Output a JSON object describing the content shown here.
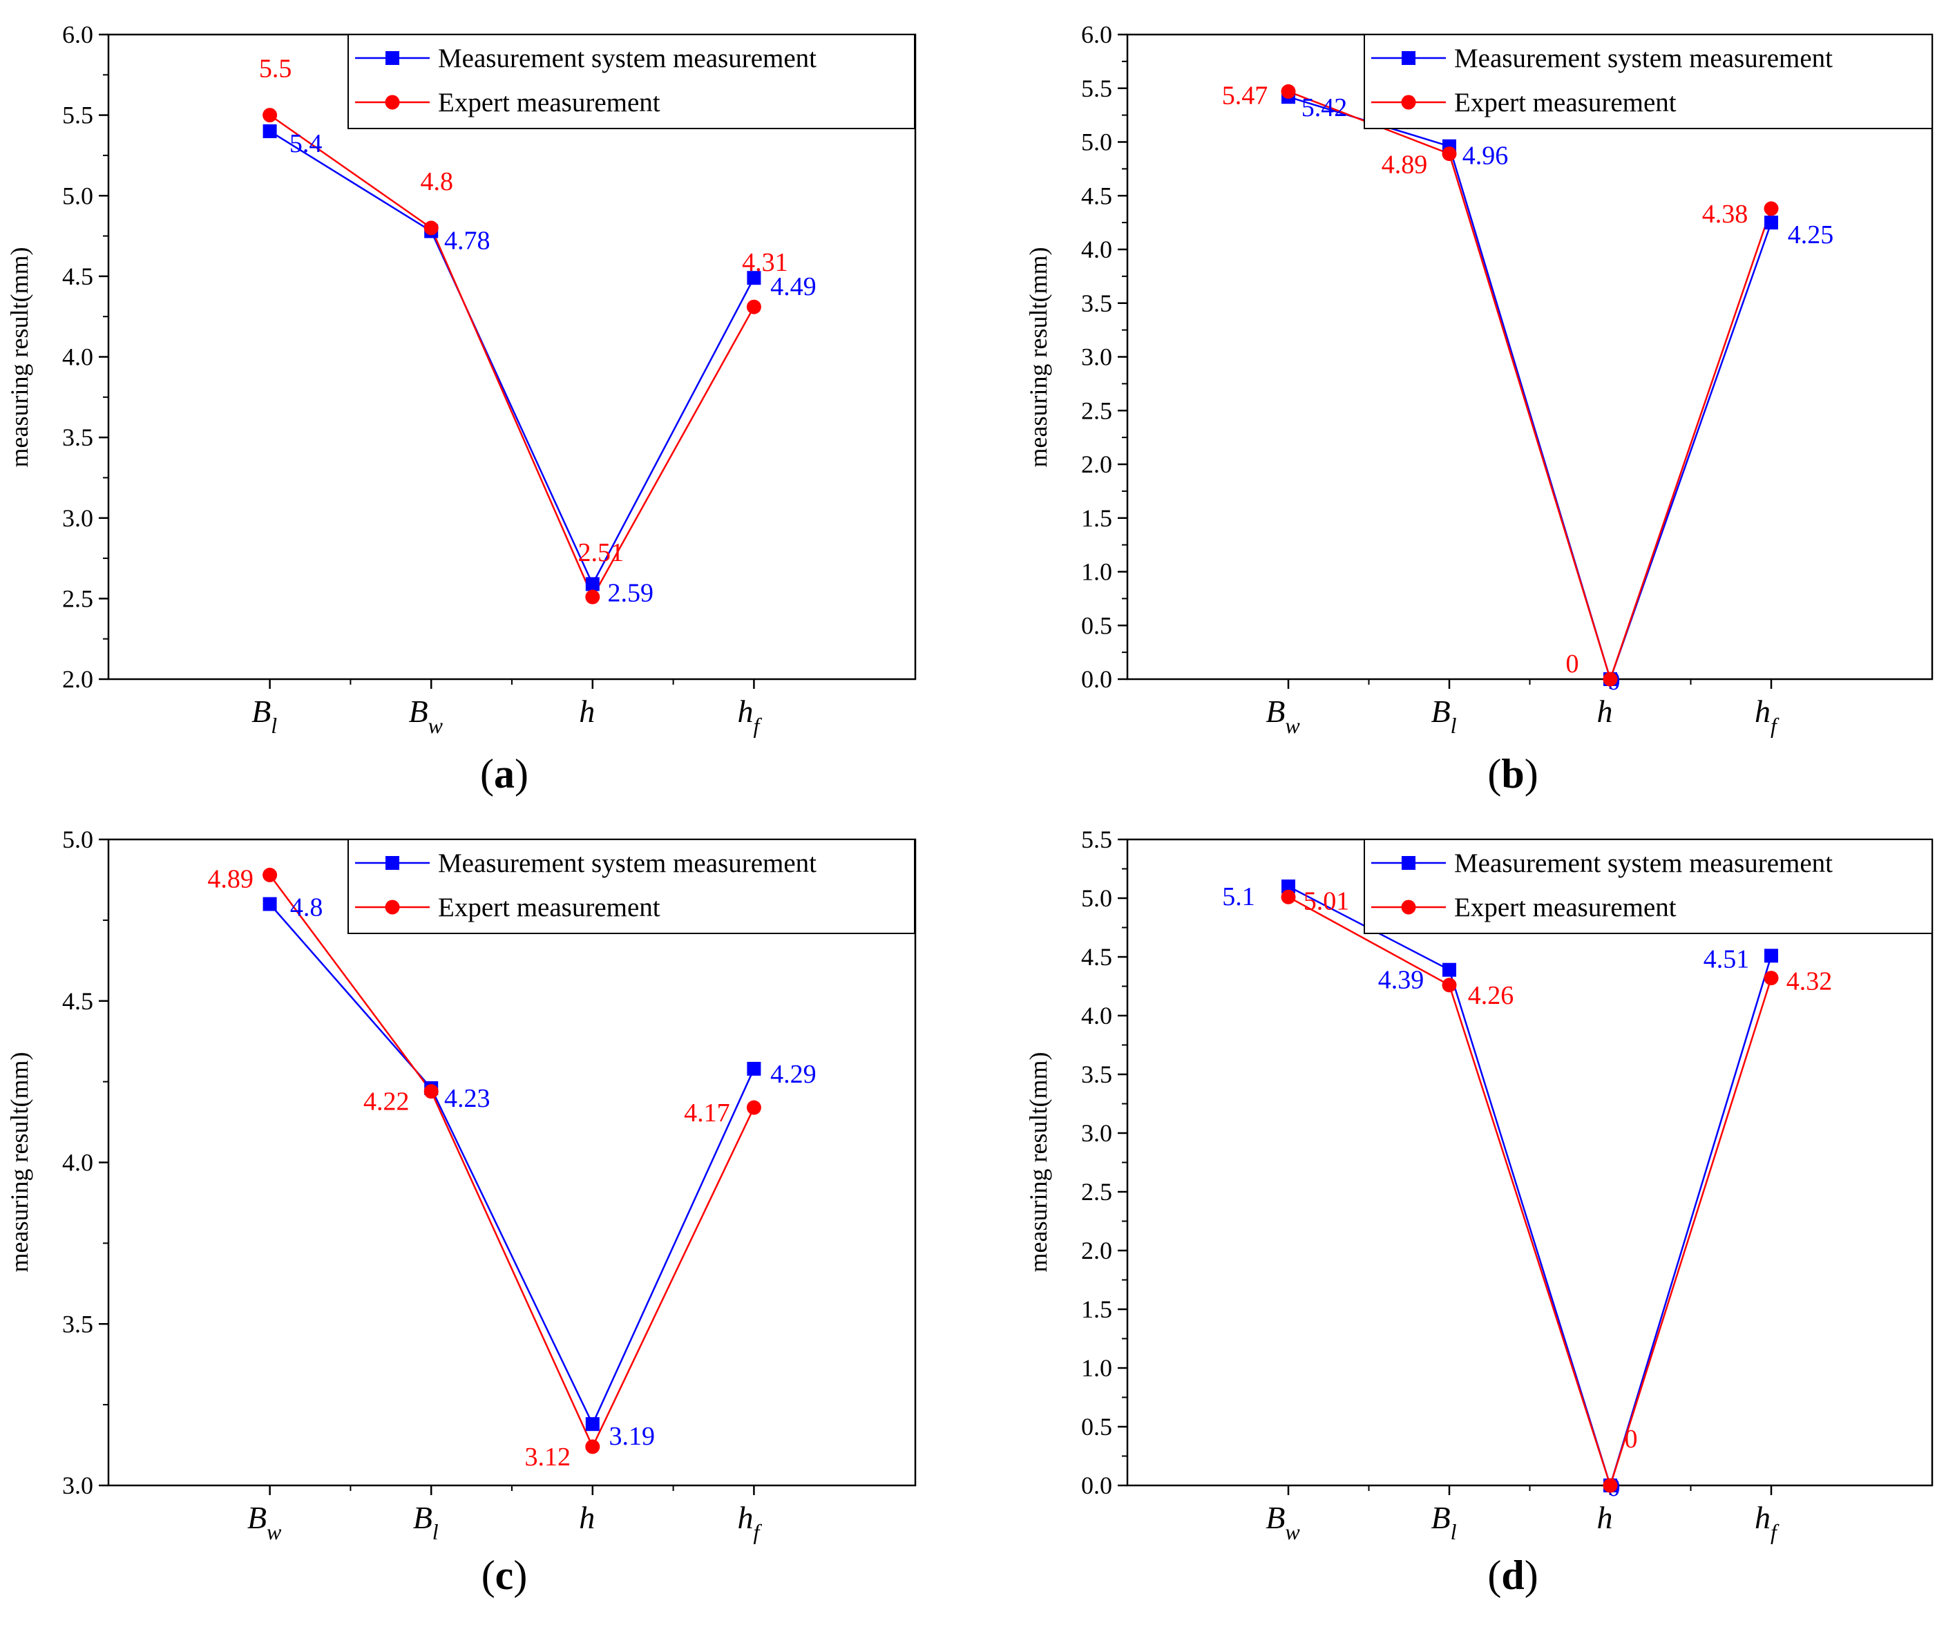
{
  "colors": {
    "system": "#0000ff",
    "expert": "#ff0000",
    "axis": "#000000",
    "background": "#ffffff"
  },
  "chart_data": [
    {
      "panel": "(a)",
      "panel_letter": "a",
      "type": "line",
      "ylabel": "measuring result(mm)",
      "ylim": [
        2.0,
        6.0
      ],
      "yticks": [
        "2.0",
        "2.5",
        "3.0",
        "3.5",
        "4.0",
        "4.5",
        "5.0",
        "5.5",
        "6.0"
      ],
      "categories": [
        {
          "main": "B",
          "sub": "l"
        },
        {
          "main": "B",
          "sub": "w"
        },
        {
          "main": "h",
          "sub": ""
        },
        {
          "main": "h",
          "sub": "f"
        }
      ],
      "legend": {
        "position": "top-right",
        "entries": [
          "Measurement system measurement",
          "Expert measurement"
        ]
      },
      "series": [
        {
          "name": "Measurement system measurement",
          "marker": "square",
          "color": "#0000ff",
          "values": [
            5.4,
            4.78,
            2.59,
            4.49
          ],
          "labels": [
            "5.4",
            "4.78",
            "2.59",
            "4.49"
          ]
        },
        {
          "name": "Expert measurement",
          "marker": "circle",
          "color": "#ff0000",
          "values": [
            5.5,
            4.8,
            2.51,
            4.31
          ],
          "labels": [
            "5.5",
            "4.8",
            "2.51",
            "4.31"
          ]
        }
      ]
    },
    {
      "panel": "(b)",
      "panel_letter": "b",
      "type": "line",
      "ylabel": "measuring result(mm)",
      "ylim": [
        0.0,
        6.0
      ],
      "yticks": [
        "0.0",
        "0.5",
        "1.0",
        "1.5",
        "2.0",
        "2.5",
        "3.0",
        "3.5",
        "4.0",
        "4.5",
        "5.0",
        "5.5",
        "6.0"
      ],
      "categories": [
        {
          "main": "B",
          "sub": "w"
        },
        {
          "main": "B",
          "sub": "l"
        },
        {
          "main": "h",
          "sub": ""
        },
        {
          "main": "h",
          "sub": "f"
        }
      ],
      "legend": {
        "position": "top-right",
        "entries": [
          "Measurement system measurement",
          "Expert measurement"
        ]
      },
      "series": [
        {
          "name": "Measurement system measurement",
          "marker": "square",
          "color": "#0000ff",
          "values": [
            5.42,
            4.96,
            0,
            4.25
          ],
          "labels": [
            "5.42",
            "4.96",
            "0",
            "4.25"
          ]
        },
        {
          "name": "Expert measurement",
          "marker": "circle",
          "color": "#ff0000",
          "values": [
            5.47,
            4.89,
            0,
            4.38
          ],
          "labels": [
            "5.47",
            "4.89",
            "0",
            "4.38"
          ]
        }
      ]
    },
    {
      "panel": "(c)",
      "panel_letter": "c",
      "type": "line",
      "ylabel": "measuring result(mm)",
      "ylim": [
        3.0,
        5.0
      ],
      "yticks": [
        "3.0",
        "3.5",
        "4.0",
        "4.5",
        "5.0"
      ],
      "categories": [
        {
          "main": "B",
          "sub": "w"
        },
        {
          "main": "B",
          "sub": "l"
        },
        {
          "main": "h",
          "sub": ""
        },
        {
          "main": "h",
          "sub": "f"
        }
      ],
      "legend": {
        "position": "top-right",
        "entries": [
          "Measurement system measurement",
          "Expert measurement"
        ]
      },
      "series": [
        {
          "name": "Measurement system measurement",
          "marker": "square",
          "color": "#0000ff",
          "values": [
            4.8,
            4.23,
            3.19,
            4.29
          ],
          "labels": [
            "4.8",
            "4.23",
            "3.19",
            "4.29"
          ]
        },
        {
          "name": "Expert measurement",
          "marker": "circle",
          "color": "#ff0000",
          "values": [
            4.89,
            4.22,
            3.12,
            4.17
          ],
          "labels": [
            "4.89",
            "4.22",
            "3.12",
            "4.17"
          ]
        }
      ]
    },
    {
      "panel": "(d)",
      "panel_letter": "d",
      "type": "line",
      "ylabel": "measuring result(mm)",
      "ylim": [
        0.0,
        5.5
      ],
      "yticks": [
        "0.0",
        "0.5",
        "1.0",
        "1.5",
        "2.0",
        "2.5",
        "3.0",
        "3.5",
        "4.0",
        "4.5",
        "5.0",
        "5.5"
      ],
      "categories": [
        {
          "main": "B",
          "sub": "w"
        },
        {
          "main": "B",
          "sub": "l"
        },
        {
          "main": "h",
          "sub": ""
        },
        {
          "main": "h",
          "sub": "f"
        }
      ],
      "legend": {
        "position": "top-right",
        "entries": [
          "Measurement system measurement",
          "Expert measurement"
        ]
      },
      "series": [
        {
          "name": "Measurement system measurement",
          "marker": "square",
          "color": "#0000ff",
          "values": [
            5.1,
            4.39,
            0,
            4.51
          ],
          "labels": [
            "5.1",
            "4.39",
            "0",
            "4.51"
          ]
        },
        {
          "name": "Expert measurement",
          "marker": "circle",
          "color": "#ff0000",
          "values": [
            5.01,
            4.26,
            0,
            4.32
          ],
          "labels": [
            "5.01",
            "4.26",
            "0",
            "4.32"
          ]
        }
      ]
    }
  ]
}
